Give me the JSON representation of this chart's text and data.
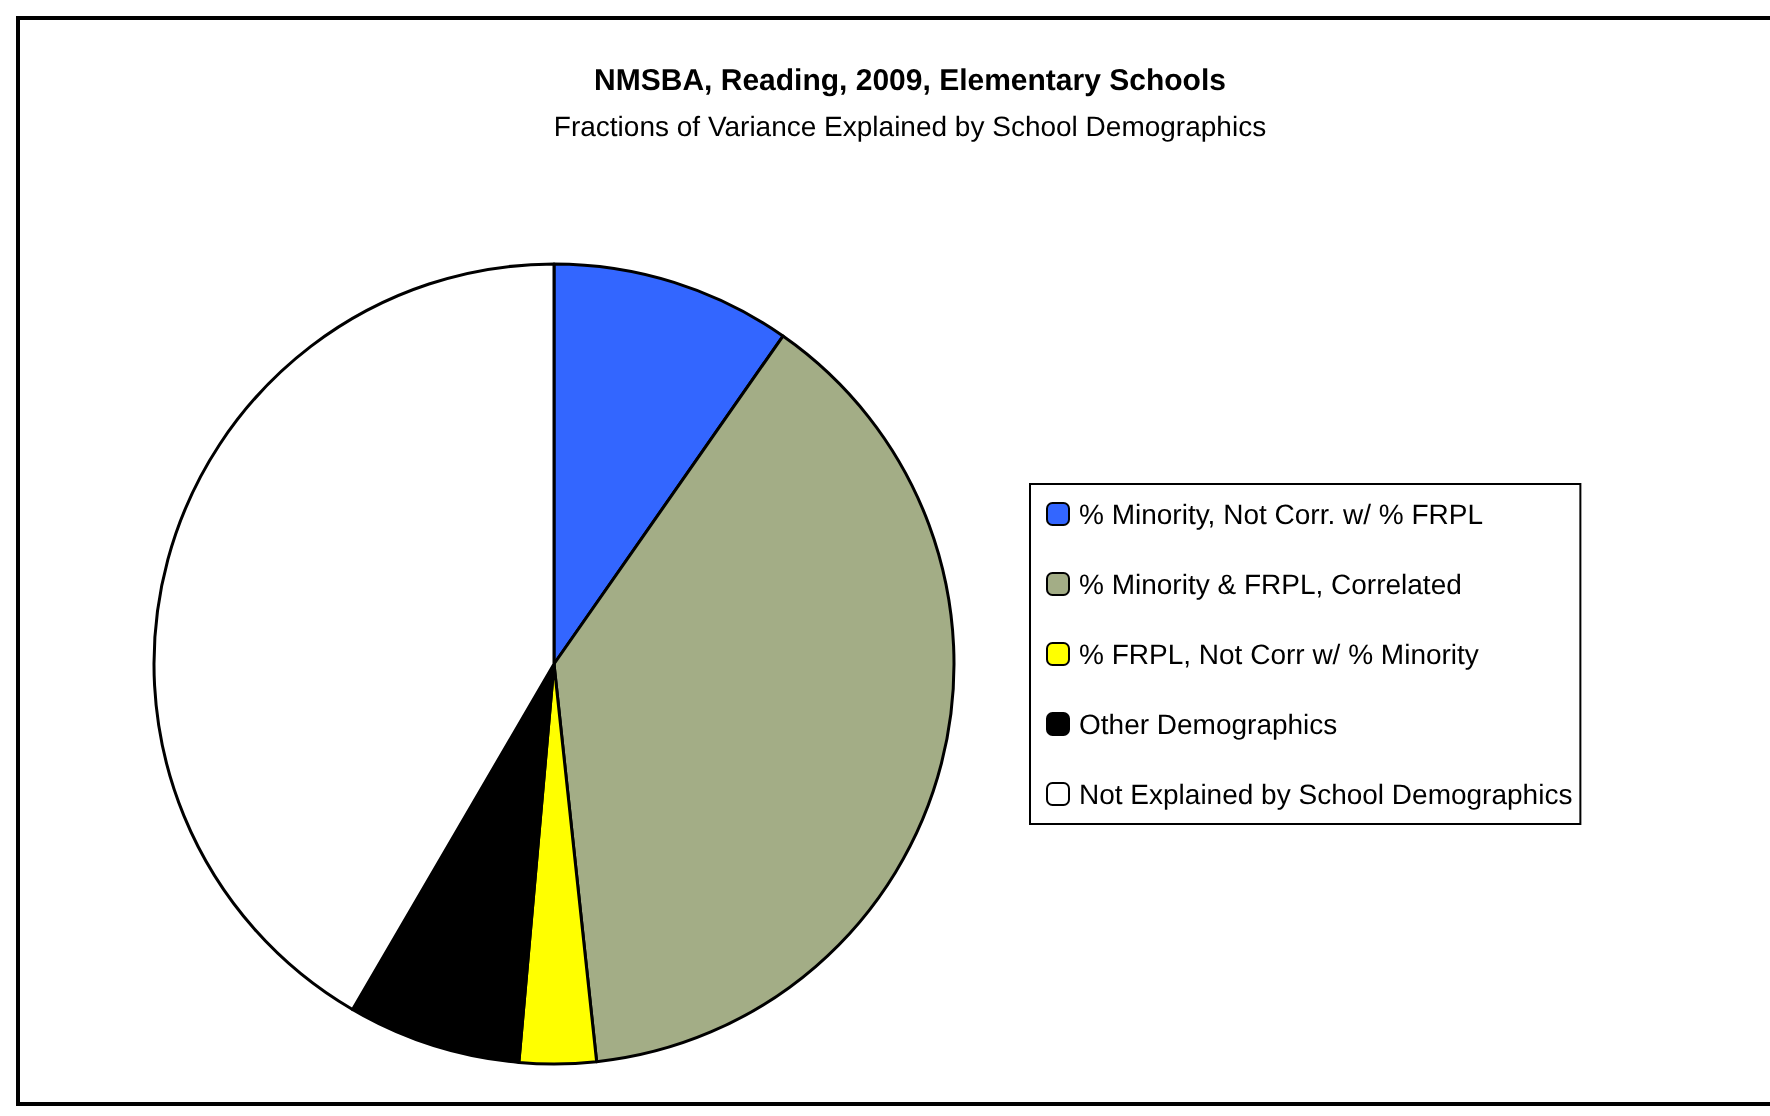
{
  "chart_data": {
    "type": "pie",
    "title": "NMSBA, Reading, 2009, Elementary Schools",
    "subtitle": "Fractions of Variance Explained by School Demographics",
    "categories": [
      "% Minority, Not Corr. w/ % FRPL",
      "% Minority & FRPL, Correlated",
      "% FRPL, Not Corr w/ % Minority",
      "Other Demographics",
      "Not Explained by School Demographics"
    ],
    "values": [
      9.7,
      38.6,
      3.1,
      7.0,
      41.6
    ],
    "colors": [
      "#3366ff",
      "#a3ad86",
      "#ffff00",
      "#000000",
      "#ffffff"
    ],
    "legend": "right"
  }
}
